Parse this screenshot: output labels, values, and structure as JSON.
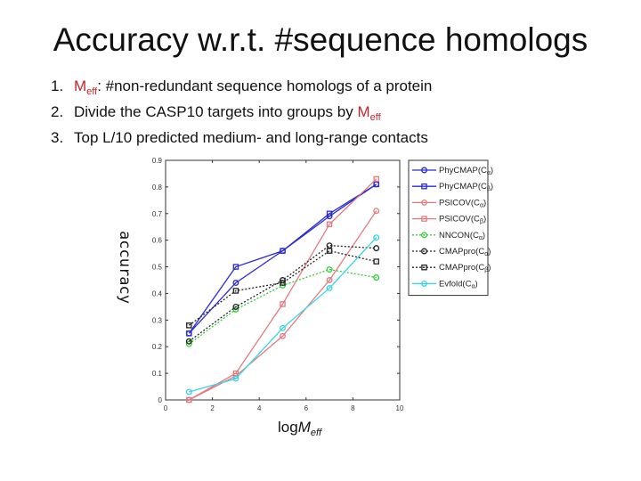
{
  "slide": {
    "title": "Accuracy w.r.t. #sequence homologs"
  },
  "bullets": [
    {
      "num": "1.",
      "meff": "M",
      "meff_sub": "eff",
      "text": ": #non-redundant sequence homologs of a protein"
    },
    {
      "num": "2.",
      "text": "Divide the CASP10 targets into groups by ",
      "meff": "M",
      "meff_sub": "eff"
    },
    {
      "num": "3.",
      "text": "Top L/10 predicted medium- and long-range contacts"
    }
  ],
  "chart_data": {
    "type": "line",
    "xlabel": "logMeff",
    "xlabel_main": "log",
    "xlabel_italic": "M",
    "xlabel_sub": "eff",
    "ylabel": "accuracy",
    "xlim": [
      0,
      10
    ],
    "ylim": [
      0,
      0.9
    ],
    "xticks": [
      "0",
      "2",
      "4",
      "6",
      "8",
      "10"
    ],
    "xtick_values": [
      0,
      2,
      4,
      6,
      8,
      10
    ],
    "yticks": [
      "0",
      "0.1",
      "0.2",
      "0.3",
      "0.4",
      "0.5",
      "0.6",
      "0.7",
      "0.8",
      "0.9"
    ],
    "ytick_values": [
      0,
      0.1,
      0.2,
      0.3,
      0.4,
      0.5,
      0.6,
      0.7,
      0.8,
      0.9
    ],
    "grid": false,
    "legend_placement": "right",
    "x": [
      1,
      3,
      5,
      7,
      9
    ],
    "series": [
      {
        "name": "PhyCMAP(Cα)",
        "legend_main": "PhyCMAP(C",
        "legend_sub": "α",
        "color": "#2a2ad2",
        "marker": "circle",
        "style": "solid",
        "values": [
          0.25,
          0.44,
          0.56,
          0.69,
          0.81
        ]
      },
      {
        "name": "PhyCMAP(Cβ)",
        "legend_main": "PhyCMAP(C",
        "legend_sub": "β",
        "color": "#2a2ad2",
        "marker": "square",
        "style": "solid",
        "values": [
          0.25,
          0.5,
          0.56,
          0.7,
          0.81
        ]
      },
      {
        "name": "PSICOV(Cα)",
        "legend_main": "PSICOV(C",
        "legend_sub": "α",
        "color": "#e47a80",
        "marker": "circle",
        "style": "solid",
        "values": [
          0.0,
          0.09,
          0.24,
          0.45,
          0.71
        ]
      },
      {
        "name": "PSICOV(Cβ)",
        "legend_main": "PSICOV(C",
        "legend_sub": "β",
        "color": "#e47a80",
        "marker": "square",
        "style": "solid",
        "values": [
          0.0,
          0.1,
          0.36,
          0.66,
          0.83
        ]
      },
      {
        "name": "NNCON(Cα)",
        "legend_main": "NNCON(C",
        "legend_sub": "α",
        "color": "#33cc33",
        "marker": "circle",
        "style": "dotted",
        "values": [
          0.21,
          0.34,
          0.43,
          0.49,
          0.46
        ]
      },
      {
        "name": "CMAPpro(Cα)",
        "legend_main": "CMAPpro(C",
        "legend_sub": "α",
        "color": "#222222",
        "marker": "circle",
        "style": "dotted",
        "values": [
          0.22,
          0.35,
          0.45,
          0.58,
          0.57
        ]
      },
      {
        "name": "CMAPpro(Cβ)",
        "legend_main": "CMAPpro(C",
        "legend_sub": "β",
        "color": "#222222",
        "marker": "square",
        "style": "dotted",
        "values": [
          0.28,
          0.41,
          0.44,
          0.56,
          0.52
        ]
      },
      {
        "name": "Evfold(Cα)",
        "legend_main": "Evfold(C",
        "legend_sub": "α",
        "color": "#33d6e6",
        "marker": "circle",
        "style": "solid",
        "values": [
          0.03,
          0.08,
          0.27,
          0.42,
          0.61
        ]
      }
    ]
  }
}
